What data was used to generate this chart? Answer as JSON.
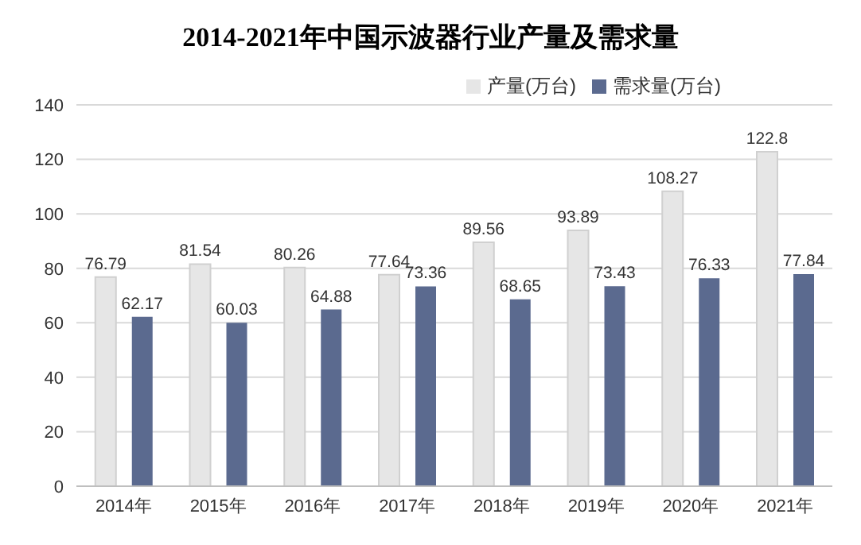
{
  "chart_data": {
    "type": "bar",
    "title": "2014-2021年中国示波器行业产量及需求量",
    "categories": [
      "2014年",
      "2015年",
      "2016年",
      "2017年",
      "2018年",
      "2019年",
      "2020年",
      "2021年"
    ],
    "series": [
      {
        "name": "产量(万台)",
        "color": "#e6e6e6",
        "values": [
          76.79,
          81.54,
          80.26,
          77.64,
          89.56,
          93.89,
          108.27,
          122.8
        ]
      },
      {
        "name": "需求量(万台)",
        "color": "#5b6a8f",
        "values": [
          62.17,
          60.03,
          64.88,
          73.36,
          68.65,
          73.43,
          76.33,
          77.84
        ]
      }
    ],
    "ylim": [
      0,
      140
    ],
    "yticks": [
      0,
      20,
      40,
      60,
      80,
      100,
      120,
      140
    ],
    "grid": "y",
    "legend": "top right",
    "data_labels": true
  }
}
